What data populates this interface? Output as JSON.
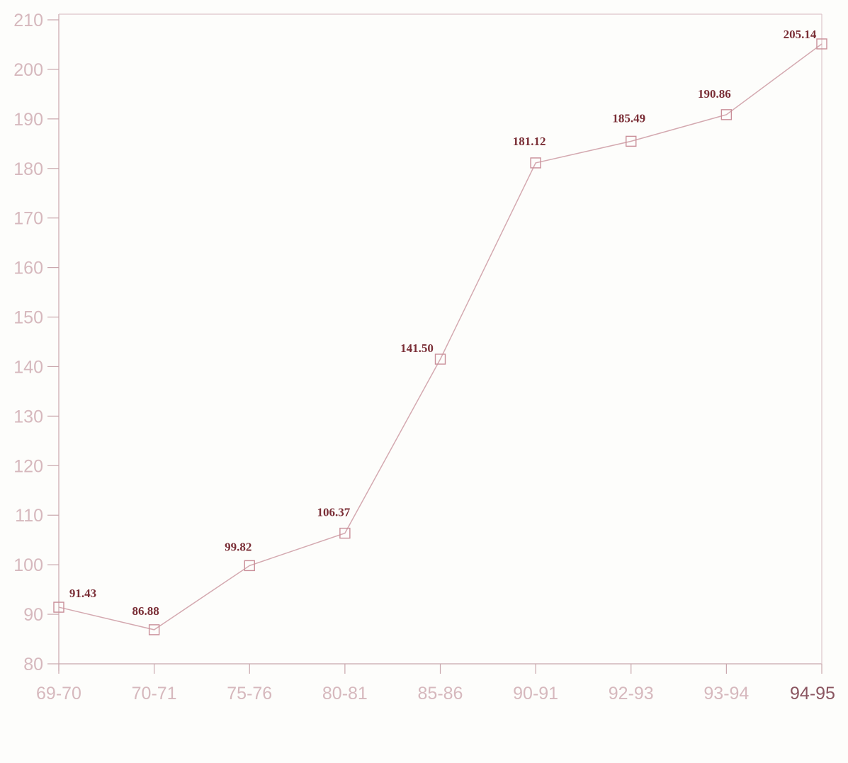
{
  "chart_data": {
    "type": "line",
    "title": "",
    "xlabel": "",
    "ylabel": "",
    "categories": [
      "69-70",
      "70-71",
      "75-76",
      "80-81",
      "85-86",
      "90-91",
      "92-93",
      "93-94",
      "94-95"
    ],
    "series": [
      {
        "values": [
          91.43,
          86.88,
          99.82,
          106.37,
          141.5,
          181.12,
          185.49,
          190.86,
          205.14
        ]
      }
    ],
    "data_labels": [
      "91.43",
      "86.88",
      "99.82",
      "106.37",
      "141.50",
      "181.12",
      "185.49",
      "190.86",
      "205.14"
    ],
    "yticks": [
      "80",
      "90",
      "100",
      "110",
      "120",
      "130",
      "140",
      "150",
      "160",
      "170",
      "180",
      "190",
      "200",
      "210"
    ],
    "ylim": [
      80,
      210
    ],
    "grid": false,
    "marker": "square",
    "colors": {
      "line": "#d4a9b0",
      "marker": "#c98e98",
      "data_label": "#7a2e36",
      "tick_label": "#d6b8bd",
      "axis": "#c9a7ad"
    }
  }
}
